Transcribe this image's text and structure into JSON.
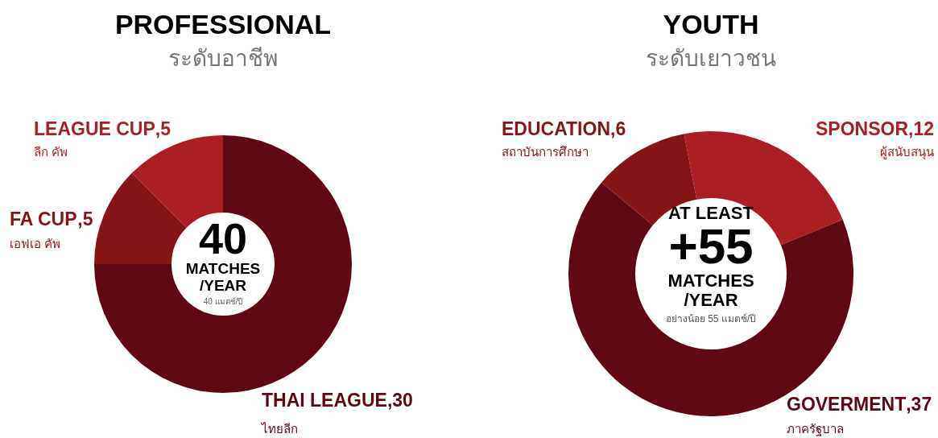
{
  "chart_data": [
    {
      "type": "donut",
      "title": "PROFESSIONAL",
      "subtitle": "ระดับอาชีพ",
      "categories": [
        "THAI LEAGUE",
        "FA CUP",
        "LEAGUE CUP"
      ],
      "values": [
        30,
        5,
        5
      ],
      "colors": [
        "#5f0813",
        "#851517",
        "#a91f24"
      ],
      "value_labels": [
        ",30",
        ",5",
        ",5"
      ],
      "annotations": [
        "40",
        "MATCHES",
        "/YEAR",
        "40 แมตช์/ปี",
        "ไทยลีก",
        "เอฟเอ คัพ",
        "ลีก คัพ"
      ]
    },
    {
      "type": "donut",
      "title": "YOUTH",
      "subtitle": "ระดับเยาวชน",
      "categories": [
        "SPONSOR",
        "GOVERMENT",
        "EDUCATION"
      ],
      "values": [
        12,
        37,
        6
      ],
      "colors": [
        "#a91f24",
        "#5f0813",
        "#851517"
      ],
      "value_labels": [
        ",12",
        ",37",
        ",6"
      ],
      "annotations": [
        "AT LEAST",
        "+55",
        "MATCHES",
        "/YEAR",
        "อย่างน้อย 55 แมตช์/ปี",
        "ผู้สนับสนุน",
        "ภาครัฐบาล",
        "สถาบันการศึกษา"
      ]
    }
  ]
}
